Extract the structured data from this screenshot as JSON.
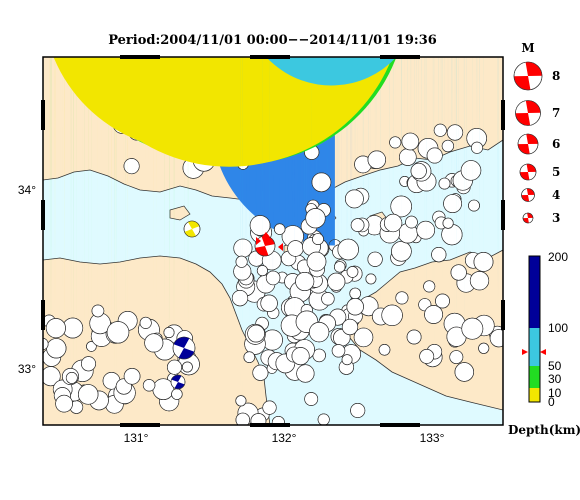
{
  "title": "Period:2004/11/01 00:00−−2014/11/01 19:36",
  "x_ticks": [
    "131°",
    "132°",
    "133°"
  ],
  "y_ticks": [
    "34°",
    "33°"
  ],
  "magnitude_legend": {
    "header": "M",
    "labels": [
      "8",
      "7",
      "6",
      "5",
      "4",
      "3"
    ]
  },
  "depth_legend": {
    "labels": [
      "200",
      "100",
      "50",
      "30",
      "10",
      "0"
    ],
    "unit_label": "Depth(km)"
  },
  "colors": {
    "sea": "#dffaff",
    "land": "#fde9c8",
    "coast": "#333333",
    "shallow_0_10": "#f2e600",
    "green_10_30": "#22dd22",
    "light_blue_30_100": "#3cc8e0",
    "blue_50_100": "#2f86e8",
    "deep_100_200": "#000099",
    "main_shock": "#ff0000"
  }
}
